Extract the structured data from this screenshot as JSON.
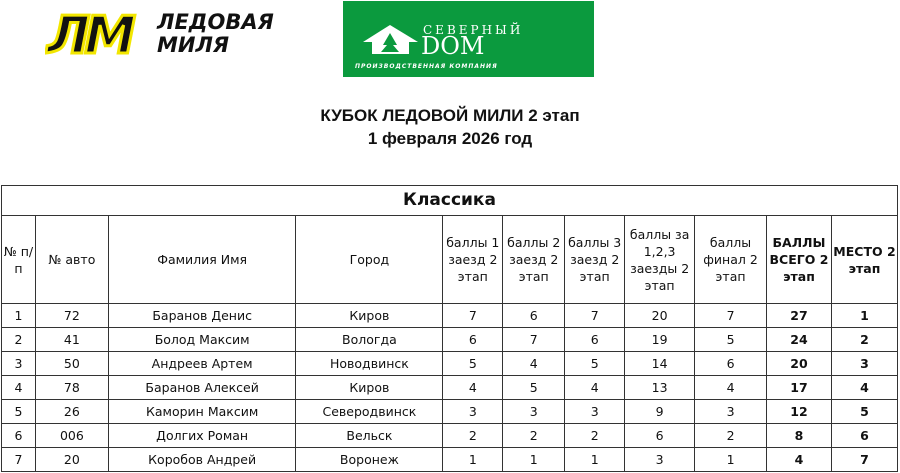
{
  "logos": {
    "left": "ЛМ ЛЕДОВАЯ МИЛЯ",
    "right_top": "СЕВЕРНЫЙ",
    "right_main": "DOM",
    "right_sub": "ПРОИЗВОДСТВЕННАЯ КОМПАНИЯ",
    "left_color": "#f2e600",
    "right_color": "#0b9a3e"
  },
  "title": "КУБОК ЛЕДОВОЙ МИЛИ 2 этап",
  "date": "1 февраля 2026 год",
  "table": {
    "caption": "Классика",
    "headers": [
      "№ п/п",
      "№ авто",
      "Фамилия Имя",
      "Город",
      "баллы 1 заезд 2 этап",
      "баллы 2 заезд 2 этап",
      "баллы 3 заезд 2 этап",
      "баллы за 1,2,3 заезды 2 этап",
      "баллы финал 2 этап",
      "БАЛЛЫ ВСЕГО 2 этап",
      "МЕСТО 2 этап"
    ],
    "rows": [
      [
        "1",
        "72",
        "Баранов Денис",
        "Киров",
        "7",
        "6",
        "7",
        "20",
        "7",
        "27",
        "1"
      ],
      [
        "2",
        "41",
        "Болод Максим",
        "Вологда",
        "6",
        "7",
        "6",
        "19",
        "5",
        "24",
        "2"
      ],
      [
        "3",
        "50",
        "Андреев Артем",
        "Новодвинск",
        "5",
        "4",
        "5",
        "14",
        "6",
        "20",
        "3"
      ],
      [
        "4",
        "78",
        "Баранов Алексей",
        "Киров",
        "4",
        "5",
        "4",
        "13",
        "4",
        "17",
        "4"
      ],
      [
        "5",
        "26",
        "Каморин Максим",
        "Северодвинск",
        "3",
        "3",
        "3",
        "9",
        "3",
        "12",
        "5"
      ],
      [
        "6",
        "006",
        "Долгих Роман",
        "Вельск",
        "2",
        "2",
        "2",
        "6",
        "2",
        "8",
        "6"
      ],
      [
        "7",
        "20",
        "Коробов Андрей",
        "Воронеж",
        "1",
        "1",
        "1",
        "3",
        "1",
        "4",
        "7"
      ]
    ]
  }
}
